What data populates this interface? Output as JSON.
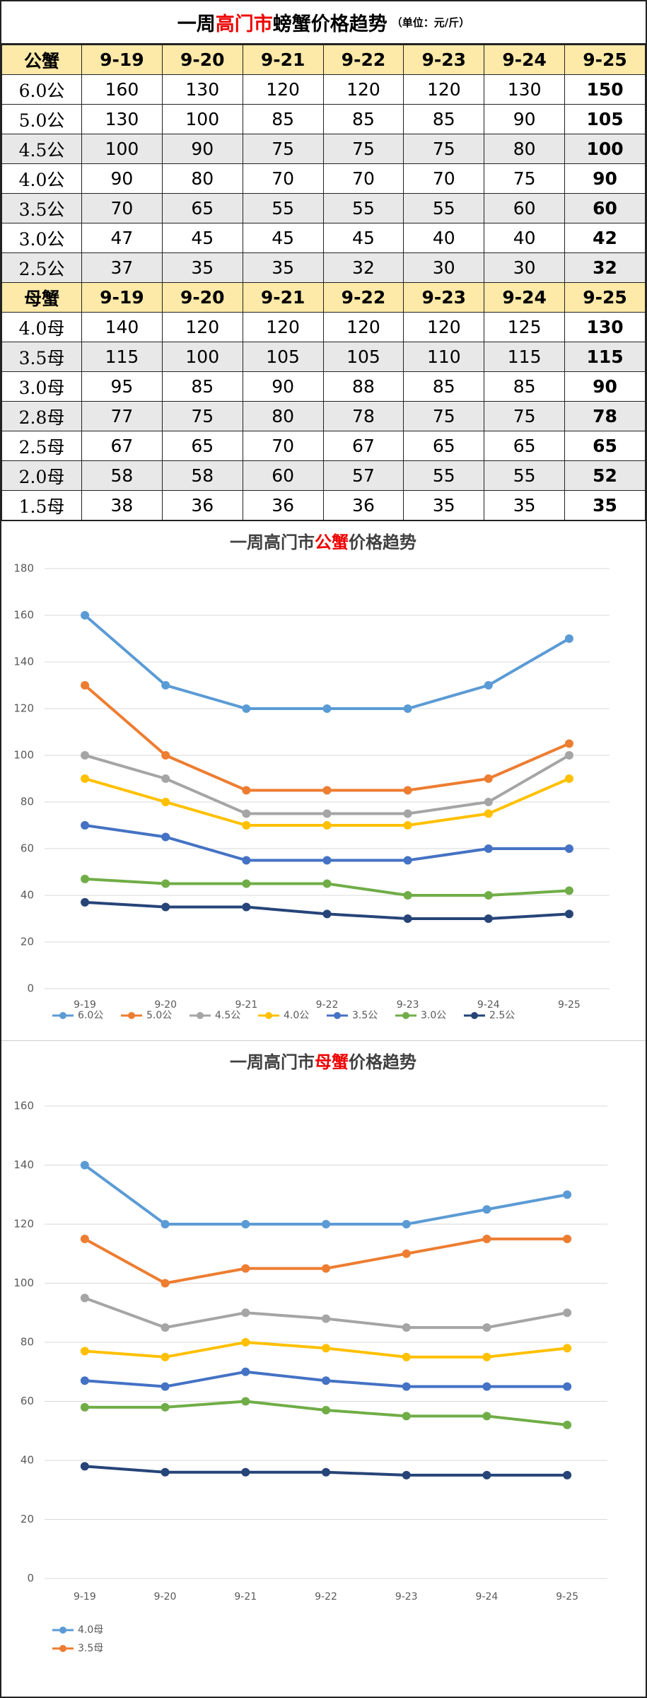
{
  "table": {
    "title_parts": [
      "一周",
      "高门市",
      "螃蟹价格趋势"
    ],
    "unit": "（单位：元/斤）",
    "sections": [
      {
        "header": [
          "公蟹",
          "9-19",
          "9-20",
          "9-21",
          "9-22",
          "9-23",
          "9-24",
          "9-25"
        ],
        "rows": [
          [
            "6.0公",
            160,
            130,
            120,
            120,
            120,
            130,
            150
          ],
          [
            "5.0公",
            130,
            100,
            85,
            85,
            85,
            90,
            105
          ],
          [
            "4.5公",
            100,
            90,
            75,
            75,
            75,
            80,
            100
          ],
          [
            "4.0公",
            90,
            80,
            70,
            70,
            70,
            75,
            90
          ],
          [
            "3.5公",
            70,
            65,
            55,
            55,
            55,
            60,
            60
          ],
          [
            "3.0公",
            47,
            45,
            45,
            45,
            40,
            40,
            42
          ],
          [
            "2.5公",
            37,
            35,
            35,
            32,
            30,
            30,
            32
          ]
        ]
      },
      {
        "header": [
          "母蟹",
          "9-19",
          "9-20",
          "9-21",
          "9-22",
          "9-23",
          "9-24",
          "9-25"
        ],
        "rows": [
          [
            "4.0母",
            140,
            120,
            120,
            120,
            120,
            125,
            130
          ],
          [
            "3.5母",
            115,
            100,
            105,
            105,
            110,
            115,
            115
          ],
          [
            "3.0母",
            95,
            85,
            90,
            88,
            85,
            85,
            90
          ],
          [
            "2.8母",
            77,
            75,
            80,
            78,
            75,
            75,
            78
          ],
          [
            "2.5母",
            67,
            65,
            70,
            67,
            65,
            65,
            65
          ],
          [
            "2.0母",
            58,
            58,
            60,
            57,
            55,
            55,
            52
          ],
          [
            "1.5母",
            38,
            36,
            36,
            36,
            35,
            35,
            35
          ]
        ]
      }
    ]
  },
  "chart_data": [
    {
      "type": "line",
      "title_parts": [
        "一周高门市",
        "公蟹",
        "价格趋势"
      ],
      "categories": [
        "9-19",
        "9-20",
        "9-21",
        "9-22",
        "9-23",
        "9-24",
        "9-25"
      ],
      "ylim": [
        0,
        180
      ],
      "yticks": [
        0,
        20,
        40,
        60,
        80,
        100,
        120,
        140,
        160,
        180
      ],
      "grid": true,
      "legend": "bottom",
      "series": [
        {
          "name": "6.0公",
          "color": "#5b9bd5",
          "values": [
            160,
            130,
            120,
            120,
            120,
            130,
            150
          ]
        },
        {
          "name": "5.0公",
          "color": "#ed7d31",
          "values": [
            130,
            100,
            85,
            85,
            85,
            90,
            105
          ]
        },
        {
          "name": "4.5公",
          "color": "#a5a5a5",
          "values": [
            100,
            90,
            75,
            75,
            75,
            80,
            100
          ]
        },
        {
          "name": "4.0公",
          "color": "#ffc000",
          "values": [
            90,
            80,
            70,
            70,
            70,
            75,
            90
          ]
        },
        {
          "name": "3.5公",
          "color": "#4472c4",
          "values": [
            70,
            65,
            55,
            55,
            55,
            60,
            60
          ]
        },
        {
          "name": "3.0公",
          "color": "#70ad47",
          "values": [
            47,
            45,
            45,
            45,
            40,
            40,
            42
          ]
        },
        {
          "name": "2.5公",
          "color": "#264478",
          "values": [
            37,
            35,
            35,
            32,
            30,
            30,
            32
          ]
        }
      ]
    },
    {
      "type": "line",
      "title_parts": [
        "一周高门市",
        "母蟹",
        "价格趋势"
      ],
      "categories": [
        "9-19",
        "9-20",
        "9-21",
        "9-22",
        "9-23",
        "9-24",
        "9-25"
      ],
      "ylim": [
        0,
        160
      ],
      "yticks": [
        0,
        20,
        40,
        60,
        80,
        100,
        120,
        140,
        160
      ],
      "grid": true,
      "legend": "bottom",
      "series": [
        {
          "name": "4.0母",
          "color": "#5b9bd5",
          "values": [
            140,
            120,
            120,
            120,
            120,
            125,
            130
          ]
        },
        {
          "name": "3.5母",
          "color": "#ed7d31",
          "values": [
            115,
            100,
            105,
            105,
            110,
            115,
            115
          ]
        },
        {
          "color": "#a5a5a5",
          "values": [
            95,
            85,
            90,
            88,
            85,
            85,
            90
          ]
        },
        {
          "color": "#ffc000",
          "values": [
            77,
            75,
            80,
            78,
            75,
            75,
            78
          ]
        },
        {
          "color": "#4472c4",
          "values": [
            67,
            65,
            70,
            67,
            65,
            65,
            65
          ]
        },
        {
          "color": "#70ad47",
          "values": [
            58,
            58,
            60,
            57,
            55,
            55,
            52
          ]
        },
        {
          "color": "#264478",
          "values": [
            38,
            36,
            36,
            36,
            35,
            35,
            35
          ]
        }
      ]
    }
  ]
}
